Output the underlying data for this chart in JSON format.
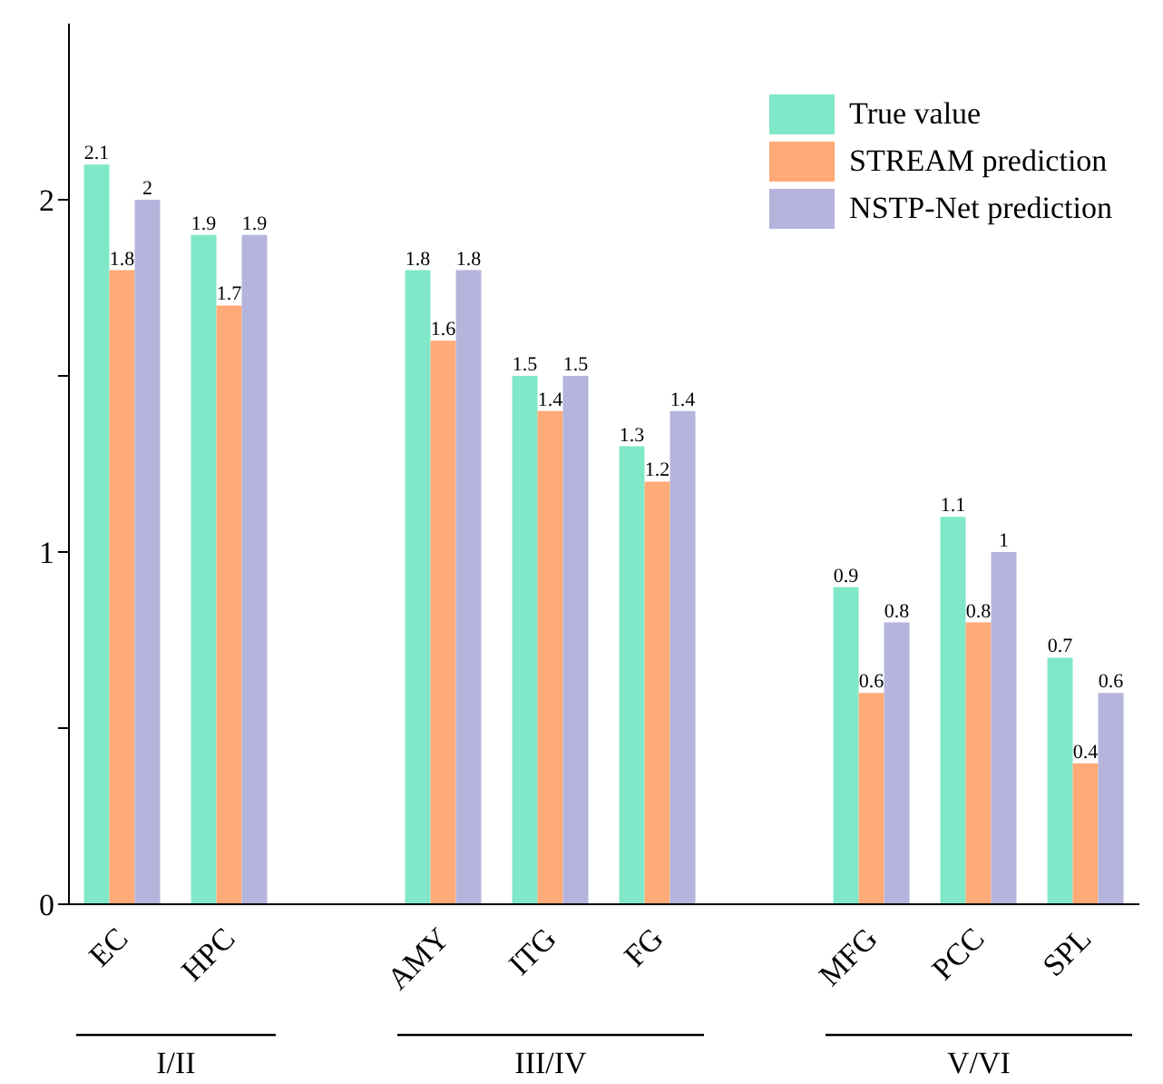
{
  "chart_data": {
    "type": "bar",
    "categories": [
      "EC",
      "HPC",
      null,
      "AMY",
      "ITG",
      "FG",
      null,
      "MFG",
      "PCC",
      "SPL"
    ],
    "series": [
      {
        "name": "True value",
        "color": "#80e8c8",
        "values": [
          2.1,
          1.9,
          null,
          1.8,
          1.5,
          1.3,
          null,
          0.9,
          1.1,
          0.7
        ]
      },
      {
        "name": "STREAM prediction",
        "color": "#ffaa77",
        "values": [
          1.8,
          1.7,
          null,
          1.6,
          1.4,
          1.2,
          null,
          0.6,
          0.8,
          0.4
        ]
      },
      {
        "name": "NSTP-Net prediction",
        "color": "#b4b4dc",
        "values": [
          2,
          1.9,
          null,
          1.8,
          1.5,
          1.4,
          null,
          0.8,
          1,
          0.6
        ]
      }
    ],
    "annotations": [
      "I/II",
      "III/IV",
      "V/VI"
    ],
    "ylim": [
      0,
      2.5
    ],
    "yticks": [
      0,
      {
        "value": 0.5,
        "label": null
      },
      1,
      {
        "value": 1.5,
        "label": null
      },
      2
    ],
    "data_labels": true,
    "legend": "top right",
    "grid": false
  }
}
